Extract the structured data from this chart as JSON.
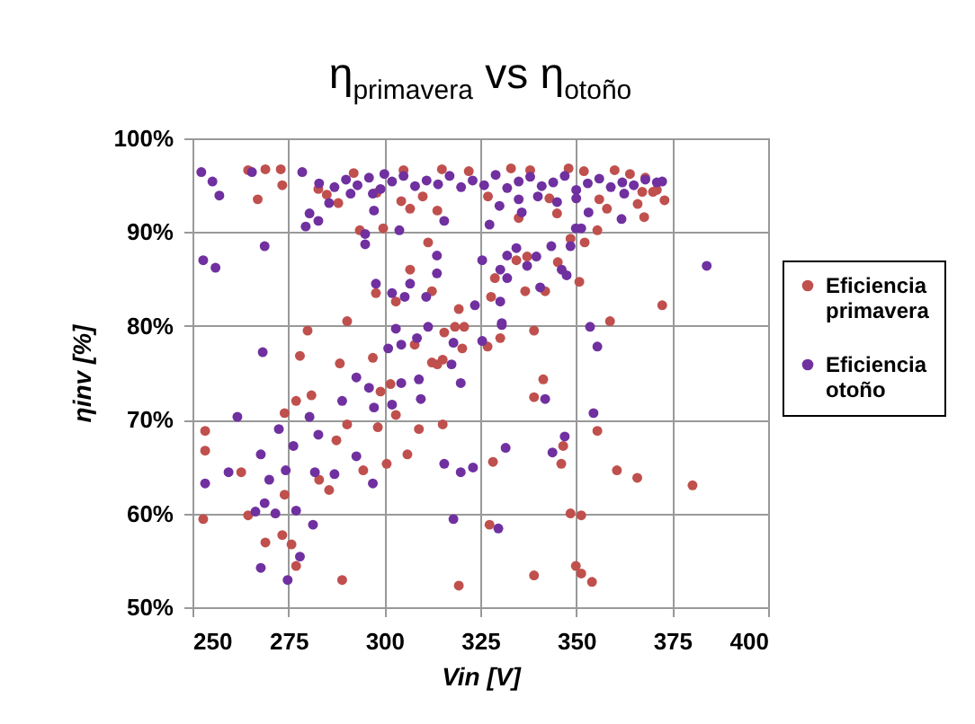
{
  "chart_data": {
    "type": "scatter",
    "title": "η$_{primavera}$ vs η$_{otoño}$",
    "xlabel": "Vin [V]",
    "ylabel": "ηinv [%]",
    "xlim": [
      250,
      400
    ],
    "xticks": [
      250,
      275,
      300,
      325,
      350,
      375,
      400
    ],
    "ylim": [
      50,
      100
    ],
    "yticks": [
      {
        "value": 50,
        "label": "50%"
      },
      {
        "value": 60,
        "label": "60%"
      },
      {
        "value": 70,
        "label": "70%"
      },
      {
        "value": 80,
        "label": "80%"
      },
      {
        "value": 90,
        "label": "90%"
      },
      {
        "value": 100,
        "label": "100%"
      }
    ],
    "grid": true,
    "legend": "right",
    "marker": "circle",
    "series": [
      {
        "name": "Eficiencia primavera",
        "color": "#c0504d",
        "x": [
          264.5,
          269,
          273,
          273.4,
          267,
          280,
          278,
          288.4,
          290.3,
          274,
          277,
          281,
          253.3,
          253.3,
          252.8,
          262.7,
          264.5,
          274,
          273.4,
          275.8,
          269,
          277,
          289,
          285.6,
          283,
          287.5,
          294.5,
          300.6,
          306,
          309,
          303,
          298.3,
          297,
          301.6,
          307.9,
          312.4,
          303,
          306.7,
          297.8,
          293.6,
          299.7,
          304.4,
          306.7,
          288,
          282.8,
          311.4,
          312.4,
          315.6,
          299,
          290.3,
          313.8,
          367.7,
          372.4,
          350.8,
          358.8,
          339,
          345.2,
          352.2,
          355.5,
          367.2,
          370,
          336.7,
          341.9,
          328.8,
          327.8,
          319.4,
          318.4,
          320.8,
          334.4,
          337.2,
          348.5,
          341.4,
          339,
          315.2,
          355.5,
          346.6,
          346.1,
          328.3,
          360.6,
          365.9,
          380.3,
          327.4,
          348.5,
          351.3,
          349.9,
          351.3,
          354.1,
          339,
          319.4,
          320.3,
          326.9,
          330.2,
          313.8,
          315.2,
          285,
          292,
          298,
          305,
          310,
          315,
          322,
          327,
          333,
          338,
          343,
          348,
          352,
          356,
          360,
          364,
          368,
          371,
          366,
          358,
          345,
          335,
          373
        ],
        "values": [
          96.6,
          96.7,
          96.7,
          95.0,
          93.5,
          79.5,
          76.8,
          76,
          80.5,
          70.7,
          72,
          72.6,
          68.8,
          66.7,
          59.4,
          64.4,
          59.8,
          62,
          57.7,
          56.7,
          56.9,
          54.4,
          52.9,
          62.5,
          63.6,
          67.8,
          64.6,
          65.3,
          66.3,
          69,
          70.5,
          69.2,
          76.6,
          73.8,
          78,
          76.1,
          82.6,
          86,
          83.5,
          90.2,
          90.4,
          93.3,
          92.5,
          93.1,
          94.6,
          88.9,
          83.7,
          79.3,
          73,
          69.5,
          92.3,
          91.6,
          82.2,
          84.7,
          80.5,
          79.5,
          86.8,
          88.9,
          90.2,
          94.3,
          94.3,
          83.7,
          83.7,
          85.1,
          83.1,
          81.8,
          79.9,
          79.9,
          87,
          87.4,
          89.3,
          74.3,
          72.4,
          69.5,
          68.8,
          67.2,
          65.3,
          65.5,
          64.6,
          63.8,
          63,
          58.8,
          60,
          59.8,
          54.4,
          53.6,
          52.7,
          53.4,
          52.3,
          77.6,
          77.8,
          78.7,
          75.9,
          76.4,
          94.0,
          96.3,
          94.2,
          96.6,
          93.8,
          96.7,
          96.5,
          93.8,
          96.8,
          96.6,
          93.6,
          96.8,
          96.5,
          93.5,
          96.6,
          96.2,
          95.8,
          94.5,
          93.0,
          92.5,
          92.0,
          91.5,
          93.4
        ]
      },
      {
        "name": "Eficiencia otoño",
        "color": "#7030a0",
        "x": [
          252.3,
          255.2,
          257,
          265.5,
          278.6,
          268.8,
          252.8,
          256,
          268.3,
          261.7,
          272.5,
          267.8,
          259.4,
          253.3,
          270,
          274.3,
          268.8,
          266.4,
          271.6,
          277,
          281.4,
          278,
          267.8,
          274.8,
          280.5,
          282.8,
          276.3,
          281.9,
          287,
          292.7,
          297,
          289,
          292.7,
          296,
          297.3,
          302,
          304.4,
          309.5,
          309,
          301,
          304.4,
          308.5,
          311.4,
          303,
          302,
          305.3,
          310.9,
          313.7,
          306.7,
          297.8,
          313.7,
          295,
          295,
          297.3,
          303.9,
          282.8,
          280.5,
          279.5,
          285.6,
          291.2,
          297,
          315.6,
          372.4,
          384,
          361.8,
          362.5,
          348.5,
          351.3,
          346.2,
          340.6,
          337.2,
          343.5,
          334.4,
          339.6,
          330.2,
          332,
          325.5,
          327.4,
          335.8,
          332,
          330.2,
          323.6,
          330.6,
          353.6,
          355.5,
          347.5,
          349.9,
          353.2,
          319.9,
          317.5,
          318,
          325.5,
          330.6,
          341.9,
          354.5,
          347,
          343.8,
          331.6,
          315.6,
          319.9,
          323.1,
          318,
          329.7,
          283,
          287,
          290,
          293,
          296,
          299,
          302,
          305,
          308,
          311,
          314,
          317,
          320,
          323,
          326,
          329,
          332,
          335,
          338,
          341,
          344,
          347,
          350,
          353,
          356,
          359,
          362,
          365,
          368,
          371,
          340,
          345,
          335,
          300,
          330,
          350
        ],
        "values": [
          96.4,
          95.4,
          93.9,
          96.4,
          96.4,
          88.5,
          87,
          86.2,
          77.2,
          70.3,
          69,
          66.3,
          64.4,
          63.2,
          63.6,
          64.6,
          61.1,
          60.2,
          60,
          60.3,
          58.8,
          55.4,
          54.2,
          52.9,
          70.3,
          68.4,
          67.2,
          64.4,
          64.2,
          66.1,
          63.2,
          72,
          74.5,
          73.4,
          71.3,
          71.6,
          73.9,
          72.2,
          74.3,
          77.6,
          78,
          78.7,
          79.9,
          79.7,
          83.5,
          83.1,
          83.1,
          85.6,
          84.5,
          84.5,
          87.5,
          89.8,
          88.7,
          92.3,
          90.2,
          91.2,
          92,
          90.6,
          93.1,
          94.1,
          94.1,
          91.2,
          95.4,
          86.4,
          91.4,
          94.1,
          88.5,
          90.4,
          86,
          84.1,
          86.4,
          88.5,
          88.3,
          87.4,
          86,
          87.5,
          87,
          90.8,
          92.1,
          85.1,
          82.6,
          82.2,
          80.3,
          79.9,
          77.8,
          85.4,
          90.4,
          92.1,
          73.9,
          75.9,
          78.2,
          78.4,
          80.1,
          72.2,
          70.7,
          68.2,
          66.5,
          67,
          65.3,
          64.4,
          64.9,
          59.4,
          58.4,
          95.2,
          94.8,
          95.6,
          95.0,
          95.8,
          94.6,
          95.4,
          96.0,
          94.9,
          95.5,
          95.1,
          96.0,
          94.8,
          95.5,
          95.0,
          96.1,
          94.7,
          95.4,
          95.9,
          94.9,
          95.3,
          96.0,
          94.5,
          95.2,
          95.7,
          94.8,
          95.3,
          95.0,
          95.6,
          95.3,
          93.8,
          93.2,
          93.5,
          96.2,
          92.8,
          93.6
        ]
      }
    ]
  }
}
